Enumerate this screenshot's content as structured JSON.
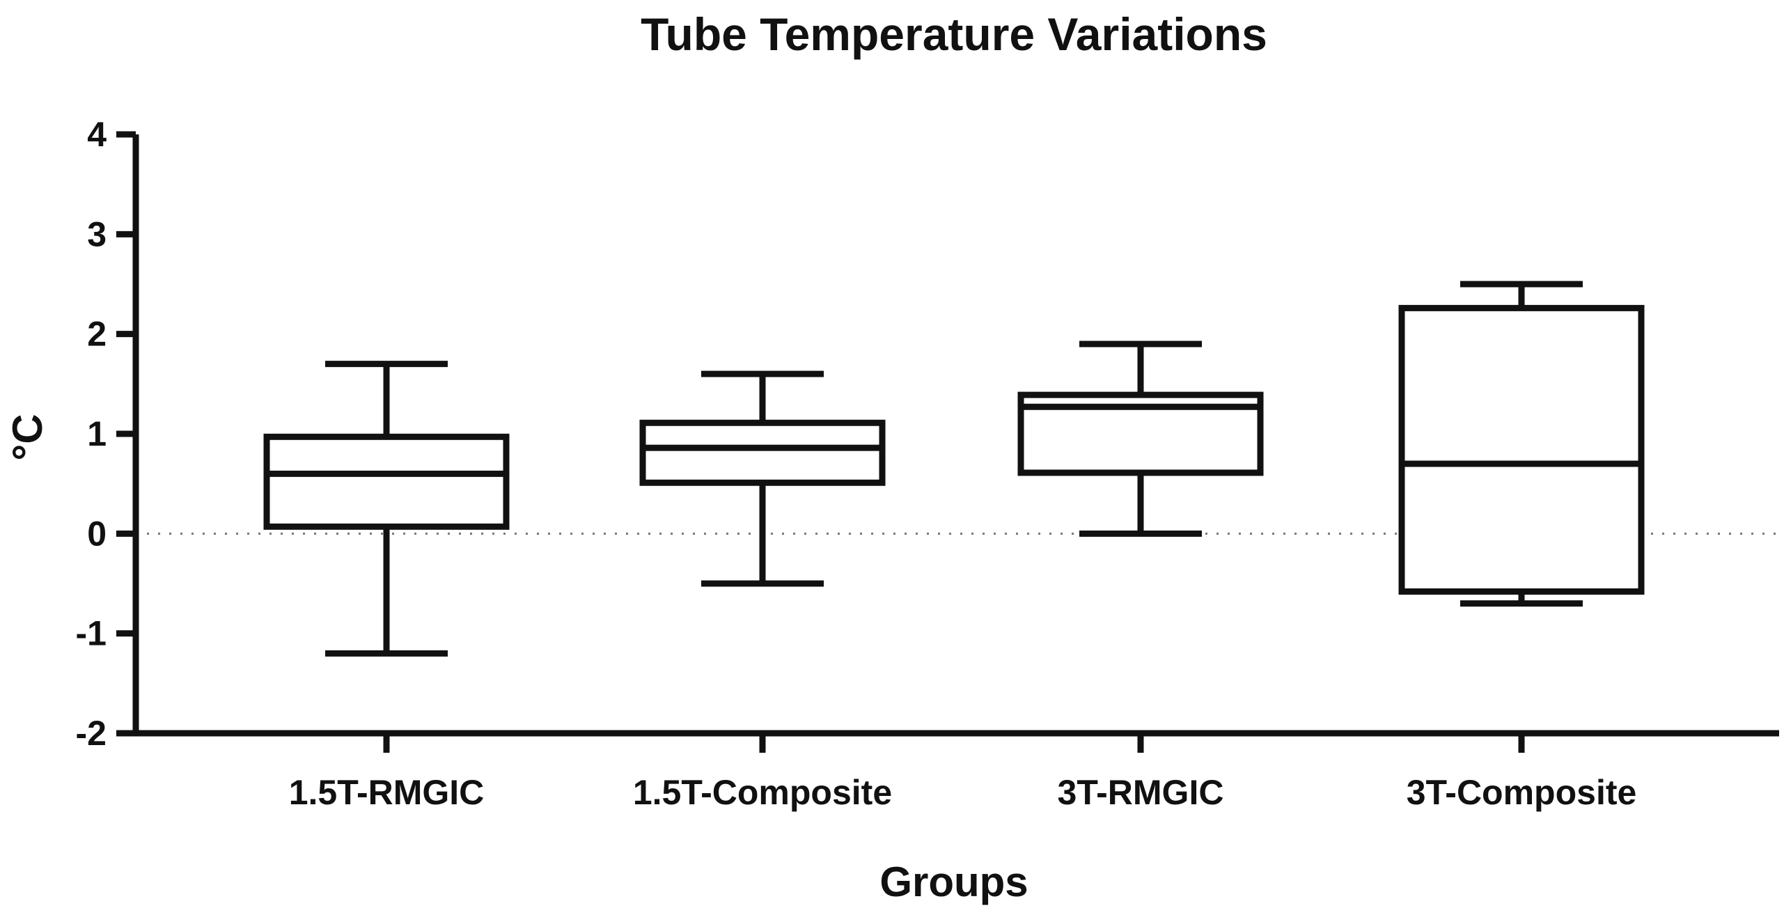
{
  "chart_data": {
    "type": "box",
    "title": "Tube Temperature Variations",
    "xlabel": "Groups",
    "ylabel": "°C",
    "ylim": [
      -2,
      4
    ],
    "yticks": [
      -2,
      -1,
      0,
      1,
      2,
      3,
      4
    ],
    "reference_line": {
      "y": 0,
      "style": "dotted"
    },
    "grid": false,
    "legend": "none",
    "categories": [
      "1.5T-RMGIC",
      "1.5T-Composite",
      "3T-RMGIC",
      "3T-Composite"
    ],
    "boxes": [
      {
        "name": "1.5T-RMGIC",
        "whisker_low": -1.2,
        "q1": 0.07,
        "median": 0.6,
        "q3": 0.97,
        "whisker_high": 1.7
      },
      {
        "name": "1.5T-Composite",
        "whisker_low": -0.5,
        "q1": 0.51,
        "median": 0.86,
        "q3": 1.11,
        "whisker_high": 1.6
      },
      {
        "name": "3T-RMGIC",
        "whisker_low": 0.0,
        "q1": 0.61,
        "median": 1.27,
        "q3": 1.39,
        "whisker_high": 1.9
      },
      {
        "name": "3T-Composite",
        "whisker_low": -0.7,
        "q1": -0.58,
        "median": 0.7,
        "q3": 2.26,
        "whisker_high": 2.5
      }
    ]
  },
  "colors": {
    "ink": "#111111",
    "box_fill": "#ffffff",
    "reference_line": "#777777"
  }
}
